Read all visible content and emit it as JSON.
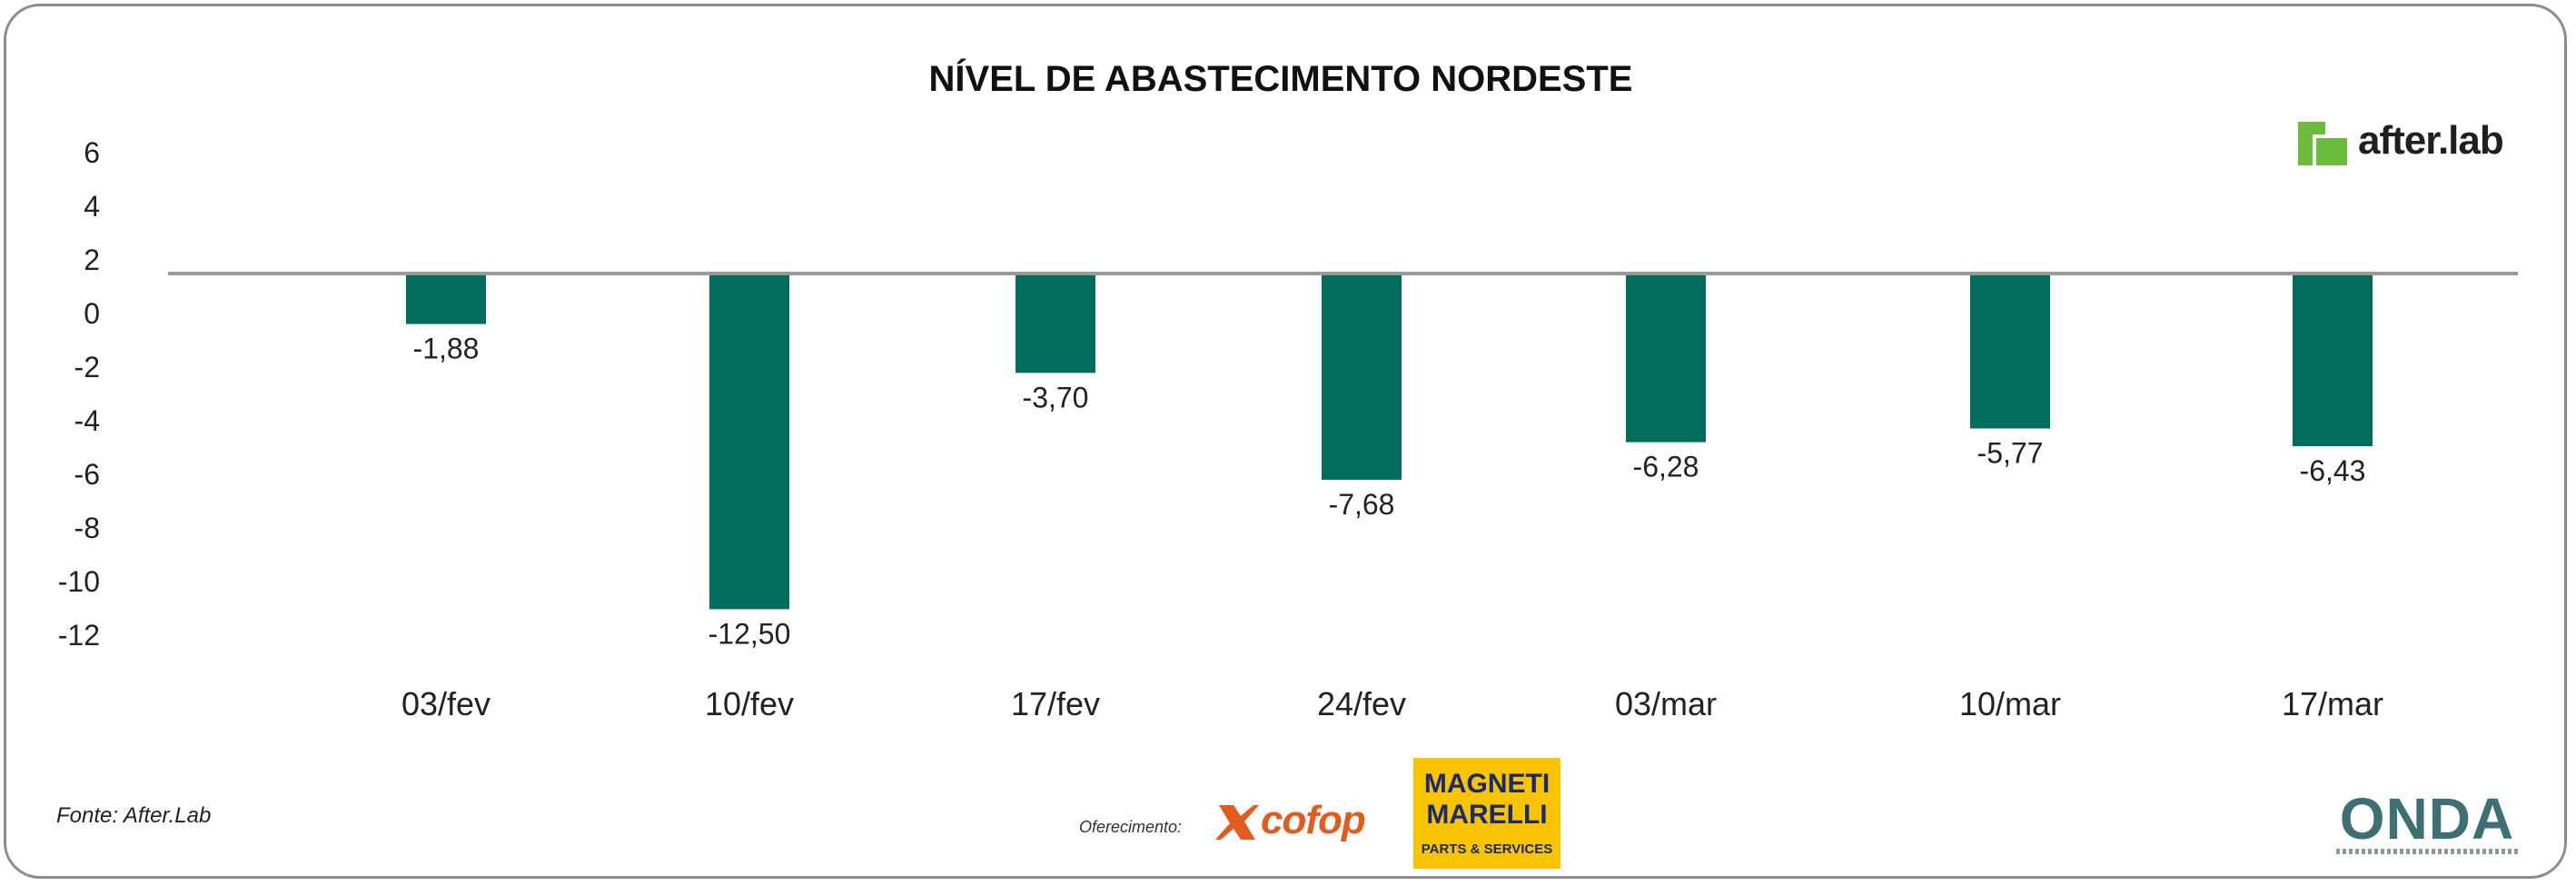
{
  "chart_data": {
    "type": "bar",
    "title": "NÍVEL DE ABASTECIMENTO NORDESTE",
    "categories": [
      "03/fev",
      "10/fev",
      "17/fev",
      "24/fev",
      "03/mar",
      "10/mar",
      "17/mar"
    ],
    "values": [
      -1.88,
      -12.5,
      -3.7,
      -7.68,
      -6.28,
      -5.77,
      -6.43
    ],
    "value_labels": [
      "-1,88",
      "-12,50",
      "-3,70",
      "-7,68",
      "-6,28",
      "-5,77",
      "-6,43"
    ],
    "yticks": [
      6,
      4,
      2,
      0,
      -2,
      -4,
      -6,
      -8,
      -10,
      -12
    ],
    "ytick_labels": [
      "6",
      "4",
      "2",
      "0",
      "-2",
      "-4",
      "-6",
      "-8",
      "-10",
      "-12"
    ],
    "ylim": [
      -12,
      6
    ],
    "grid": false,
    "bar_color": "#016d5d",
    "baseline_color": "#9a9a9a"
  },
  "source": "Fonte: After.Lab",
  "brand": {
    "afterlab": "after.lab",
    "offer_label": "Oferecimento:",
    "cofop": "cofop",
    "magneti_line1": "MAGNETI",
    "magneti_line2": "MARELLI",
    "magneti_line3": "PARTS & SERVICES",
    "onda": "ONDA",
    "afterlab_green": "#6cbd3b"
  }
}
